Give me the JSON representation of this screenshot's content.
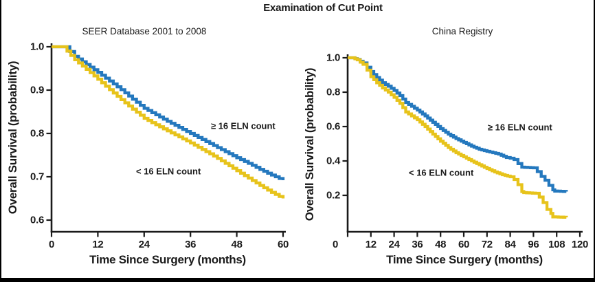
{
  "title": "Examination of Cut Point",
  "colors": {
    "blue": "#2478BE",
    "gold": "#E7C31B",
    "axis": "#1A1A1A",
    "text": "#1A1A1A",
    "frame": "#000000"
  },
  "chart_data": [
    {
      "type": "line",
      "subtype": "kaplan_meier_step",
      "title": "SEER Database 2001 to 2008",
      "xlabel": "Time Since Surgery (months)",
      "ylabel": "Overall Survival (probability)",
      "xlim": [
        0,
        60
      ],
      "ylim": [
        0.6,
        1.0
      ],
      "x_ticks": [
        0,
        12,
        24,
        36,
        48,
        60
      ],
      "y_ticks": [
        1.0,
        0.9,
        0.8,
        0.7,
        0.6
      ],
      "grid": false,
      "legend_position": "labels annotated on plot",
      "series": [
        {
          "name": "≥ 16 ELN count",
          "color_key": "blue",
          "points": [
            [
              0,
              1.0
            ],
            [
              3.5,
              1.0
            ],
            [
              6,
              0.978
            ],
            [
              9,
              0.959
            ],
            [
              12,
              0.941
            ],
            [
              15,
              0.921
            ],
            [
              18,
              0.901
            ],
            [
              21,
              0.879
            ],
            [
              24,
              0.858
            ],
            [
              27,
              0.843
            ],
            [
              30,
              0.828
            ],
            [
              33,
              0.814
            ],
            [
              36,
              0.8
            ],
            [
              39,
              0.786
            ],
            [
              42,
              0.772
            ],
            [
              45,
              0.758
            ],
            [
              48,
              0.744
            ],
            [
              51,
              0.731
            ],
            [
              54,
              0.717
            ],
            [
              57,
              0.704
            ],
            [
              60,
              0.692
            ]
          ]
        },
        {
          "name": "< 16 ELN count",
          "color_key": "gold",
          "points": [
            [
              0,
              1.0
            ],
            [
              3,
              1.0
            ],
            [
              6,
              0.97
            ],
            [
              9,
              0.948
            ],
            [
              12,
              0.925
            ],
            [
              15,
              0.901
            ],
            [
              18,
              0.878
            ],
            [
              21,
              0.856
            ],
            [
              24,
              0.835
            ],
            [
              27,
              0.82
            ],
            [
              30,
              0.806
            ],
            [
              33,
              0.792
            ],
            [
              36,
              0.778
            ],
            [
              39,
              0.763
            ],
            [
              42,
              0.748
            ],
            [
              45,
              0.731
            ],
            [
              48,
              0.714
            ],
            [
              51,
              0.697
            ],
            [
              54,
              0.68
            ],
            [
              57,
              0.664
            ],
            [
              60,
              0.65
            ]
          ]
        }
      ],
      "annotations": [
        {
          "series_index": 0,
          "x": 41.3,
          "y": 0.817
        },
        {
          "series_index": 1,
          "x": 21.9,
          "y": 0.713
        }
      ]
    },
    {
      "type": "line",
      "subtype": "kaplan_meier_step",
      "title": "China Registry",
      "xlabel": "Time Since Surgery (months)",
      "ylabel": "Overall Survival (probability)",
      "xlim": [
        0,
        120
      ],
      "ylim": [
        0.0,
        1.0
      ],
      "x_ticks": [
        0,
        12,
        24,
        36,
        48,
        60,
        72,
        84,
        96,
        108,
        120
      ],
      "y_ticks": [
        1.0,
        0.8,
        0.6,
        0.4,
        0.2
      ],
      "grid": false,
      "legend_position": "labels annotated on plot",
      "series": [
        {
          "name": "≥ 16 ELN count",
          "color_key": "blue",
          "points": [
            [
              0,
              1.0
            ],
            [
              2.5,
              1.0
            ],
            [
              5,
              0.99
            ],
            [
              8,
              0.97
            ],
            [
              10,
              0.945
            ],
            [
              12,
              0.92
            ],
            [
              15,
              0.885
            ],
            [
              18,
              0.855
            ],
            [
              21,
              0.835
            ],
            [
              24,
              0.81
            ],
            [
              27,
              0.78
            ],
            [
              30,
              0.74
            ],
            [
              33,
              0.718
            ],
            [
              36,
              0.696
            ],
            [
              40,
              0.662
            ],
            [
              44,
              0.625
            ],
            [
              48,
              0.588
            ],
            [
              52,
              0.556
            ],
            [
              56,
              0.53
            ],
            [
              60,
              0.508
            ],
            [
              64,
              0.486
            ],
            [
              68,
              0.468
            ],
            [
              72,
              0.456
            ],
            [
              78,
              0.44
            ],
            [
              82,
              0.42
            ],
            [
              84,
              0.416
            ],
            [
              86,
              0.408
            ],
            [
              88,
              0.385
            ],
            [
              90,
              0.364
            ],
            [
              96,
              0.36
            ],
            [
              98,
              0.338
            ],
            [
              100,
              0.31
            ],
            [
              102,
              0.288
            ],
            [
              104,
              0.258
            ],
            [
              106,
              0.232
            ],
            [
              107,
              0.225
            ],
            [
              113,
              0.222
            ]
          ]
        },
        {
          "name": "< 16 ELN count",
          "color_key": "gold",
          "points": [
            [
              0,
              1.0
            ],
            [
              2.5,
              1.0
            ],
            [
              5,
              0.988
            ],
            [
              8,
              0.962
            ],
            [
              10,
              0.928
            ],
            [
              12,
              0.89
            ],
            [
              15,
              0.855
            ],
            [
              18,
              0.825
            ],
            [
              21,
              0.8
            ],
            [
              24,
              0.77
            ],
            [
              27,
              0.735
            ],
            [
              30,
              0.685
            ],
            [
              33,
              0.662
            ],
            [
              36,
              0.64
            ],
            [
              40,
              0.6
            ],
            [
              44,
              0.556
            ],
            [
              48,
              0.515
            ],
            [
              52,
              0.478
            ],
            [
              56,
              0.448
            ],
            [
              60,
              0.424
            ],
            [
              64,
              0.4
            ],
            [
              68,
              0.378
            ],
            [
              72,
              0.356
            ],
            [
              76,
              0.336
            ],
            [
              80,
              0.32
            ],
            [
              84,
              0.308
            ],
            [
              86,
              0.292
            ],
            [
              88,
              0.262
            ],
            [
              90,
              0.222
            ],
            [
              91,
              0.216
            ],
            [
              97,
              0.212
            ],
            [
              99,
              0.19
            ],
            [
              101,
              0.158
            ],
            [
              103,
              0.118
            ],
            [
              105,
              0.095
            ],
            [
              106,
              0.075
            ],
            [
              113,
              0.072
            ]
          ]
        }
      ],
      "annotations": [
        {
          "series_index": 0,
          "x": 72.4,
          "y": 0.596
        },
        {
          "series_index": 1,
          "x": 31.6,
          "y": 0.332
        }
      ]
    }
  ]
}
